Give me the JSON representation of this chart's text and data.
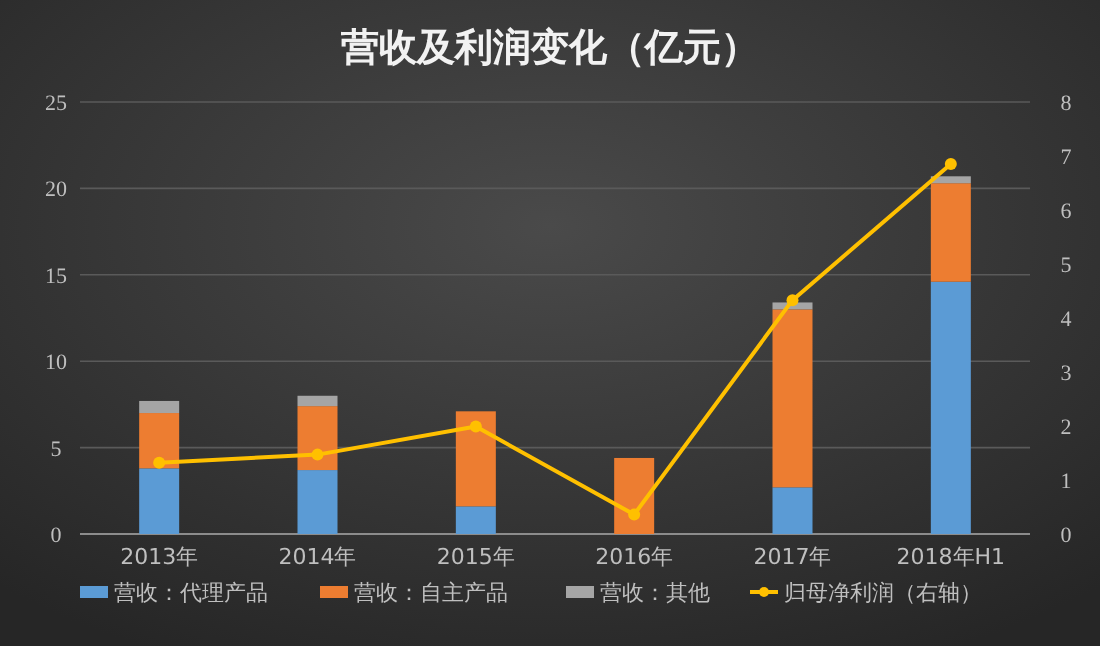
{
  "chart_data": {
    "type": "bar",
    "title": "营收及利润变化（亿元）",
    "stacked": true,
    "categories": [
      "2013年",
      "2014年",
      "2015年",
      "2016年",
      "2017年",
      "2018年H1"
    ],
    "series": [
      {
        "name": "营收：代理产品",
        "color": "#5b9bd5",
        "values": [
          3.8,
          3.7,
          1.6,
          0,
          2.7,
          14.6
        ]
      },
      {
        "name": "营收：自主产品",
        "color": "#ed7d31",
        "values": [
          3.2,
          3.7,
          5.5,
          4.4,
          10.3,
          5.7
        ]
      },
      {
        "name": "营收：其他",
        "color": "#a5a5a5",
        "values": [
          0.7,
          0.6,
          0,
          0,
          0.4,
          0.4
        ]
      },
      {
        "name": "归母净利润（右轴）",
        "color": "#ffc000",
        "type": "line",
        "axis": "y2",
        "values": [
          1.32,
          1.47,
          1.99,
          0.36,
          4.33,
          6.85
        ]
      }
    ],
    "ylim": [
      0,
      25
    ],
    "yticks": [
      0,
      5,
      10,
      15,
      20,
      25
    ],
    "y2lim": [
      0,
      8
    ],
    "y2ticks": [
      0,
      1,
      2,
      3,
      4,
      5,
      6,
      7,
      8
    ],
    "grid": "y",
    "legend": "bottom",
    "marker": "circle"
  }
}
